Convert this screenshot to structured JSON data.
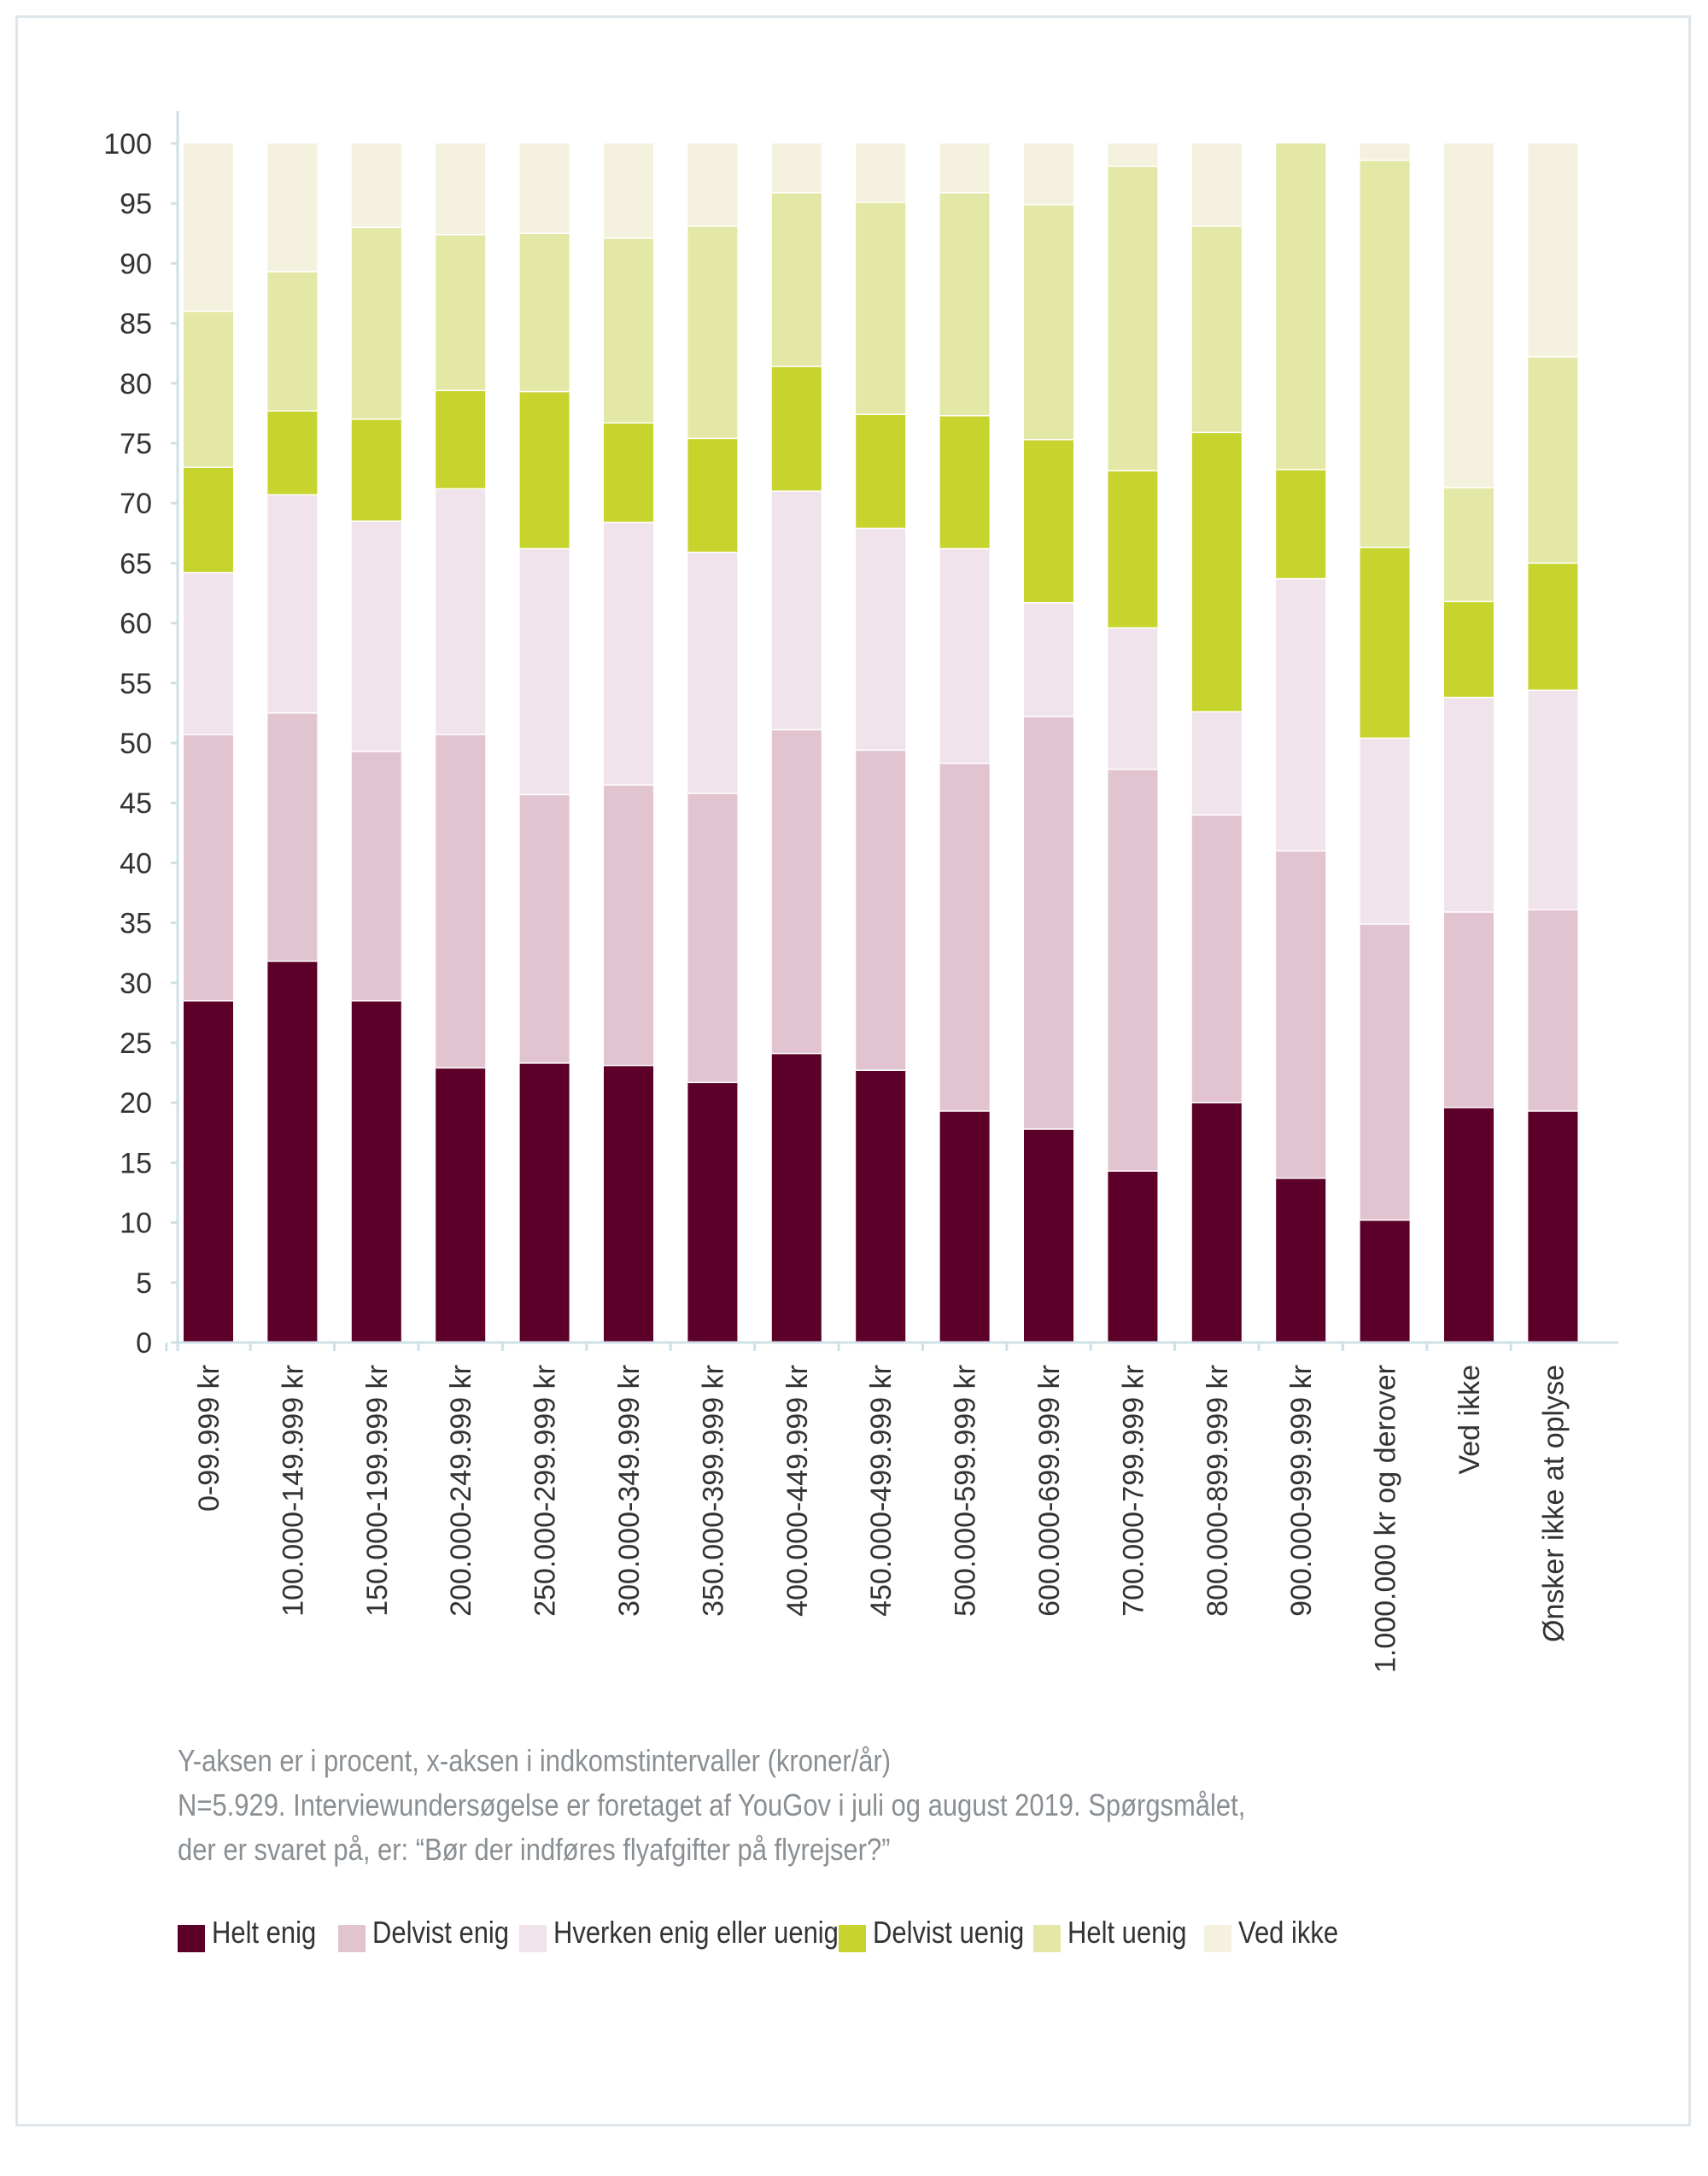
{
  "chart_data": {
    "type": "bar",
    "stacked": true,
    "ylim": [
      0,
      100
    ],
    "yticks": [
      0,
      5,
      10,
      15,
      20,
      25,
      30,
      35,
      40,
      45,
      50,
      55,
      60,
      65,
      70,
      75,
      80,
      85,
      90,
      95,
      100
    ],
    "categories": [
      "0-99.999 kr",
      "100.000-149.999 kr",
      "150.000-199.999 kr",
      "200.000-249.999 kr",
      "250.000-299.999 kr",
      "300.000-349.999 kr",
      "350.000-399.999 kr",
      "400.000-449.999 kr",
      "450.000-499.999 kr",
      "500.000-599.999 kr",
      "600.000-699.999 kr",
      "700.000-799.999 kr",
      "800.000-899.999 kr",
      "900.000-999.999 kr",
      "1.000.000 kr og derover",
      "Ved ikke",
      "Ønsker ikke at oplyse"
    ],
    "series": [
      {
        "name": "Helt enig",
        "color": "#5c0029",
        "values": [
          28.5,
          31.8,
          28.5,
          22.9,
          23.3,
          23.1,
          21.7,
          24.1,
          22.7,
          19.3,
          17.8,
          14.3,
          20.0,
          13.7,
          10.2,
          19.6,
          19.3
        ]
      },
      {
        "name": "Delvist enig",
        "color": "#e2c4d1",
        "values": [
          22.2,
          20.7,
          20.8,
          27.8,
          22.4,
          23.4,
          24.1,
          27.0,
          26.7,
          29.0,
          34.4,
          33.5,
          24.0,
          27.3,
          24.7,
          16.3,
          16.8
        ]
      },
      {
        "name": "Hverken enig eller uenig",
        "color": "#f1e3eb",
        "values": [
          13.5,
          18.2,
          19.2,
          20.5,
          20.5,
          21.9,
          20.1,
          19.9,
          18.5,
          17.9,
          9.5,
          11.8,
          8.6,
          22.7,
          15.5,
          17.9,
          18.3
        ]
      },
      {
        "name": "Delvist uenig",
        "color": "#c7d42e",
        "values": [
          8.8,
          7.0,
          8.5,
          8.2,
          13.1,
          8.3,
          9.5,
          10.4,
          9.5,
          11.1,
          13.6,
          13.1,
          23.3,
          9.1,
          15.9,
          8.0,
          10.6
        ]
      },
      {
        "name": "Helt uenig",
        "color": "#e3e8a6",
        "values": [
          13.0,
          11.6,
          16.0,
          13.0,
          13.2,
          15.4,
          17.7,
          14.5,
          17.7,
          18.6,
          19.6,
          25.4,
          17.2,
          27.2,
          32.3,
          9.5,
          17.2
        ]
      },
      {
        "name": "Ved ikke",
        "color": "#f5f1df",
        "values": [
          14.0,
          10.7,
          7.0,
          7.6,
          7.5,
          7.9,
          6.9,
          4.1,
          4.9,
          4.1,
          5.1,
          1.9,
          6.9,
          0.0,
          1.4,
          28.7,
          17.8
        ]
      }
    ],
    "xlabel": "",
    "ylabel": ""
  },
  "notes": {
    "line1": "Y-aksen er i procent, x-aksen i indkomstintervaller (kroner/år)",
    "line2": "N=5.929. Interviewundersøgelse er foretaget af YouGov i juli og august 2019. Spørgsmålet,",
    "line3": "der er svaret på, er: “Bør der indføres flyafgifter på flyrejser?”"
  },
  "legend": [
    {
      "label": "Helt enig",
      "color": "#5c0029"
    },
    {
      "label": "Delvist enig",
      "color": "#e2c4d1"
    },
    {
      "label": "Hverken enig eller uenig",
      "color": "#f1e3eb"
    },
    {
      "label": "Delvist uenig",
      "color": "#c7d42e"
    },
    {
      "label": "Helt uenig",
      "color": "#e3e8a6"
    },
    {
      "label": "Ved ikke",
      "color": "#f5f1df"
    }
  ],
  "colors": {
    "axis": "#cfe0e8",
    "tick_text": "#333333",
    "frame": "#dfe6ea"
  }
}
